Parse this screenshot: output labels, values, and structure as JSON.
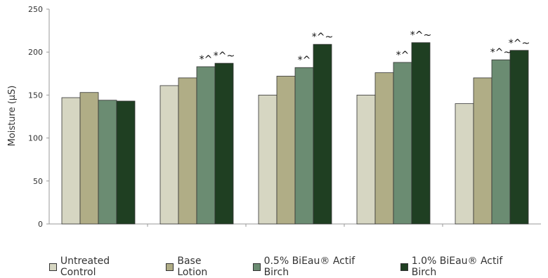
{
  "chart_data": {
    "type": "bar",
    "title": "",
    "xlabel": "",
    "ylabel": "Moisture (µS)",
    "ylim": [
      0,
      250
    ],
    "yticks": [
      0,
      50,
      100,
      150,
      200,
      250
    ],
    "categories": [
      "",
      "",
      "",
      "",
      ""
    ],
    "series": [
      {
        "name": "Untreated Control",
        "color": "#d6d6c2",
        "values": [
          147,
          161,
          150,
          150,
          140
        ]
      },
      {
        "name": "Base Lotion",
        "color": "#b0ad86",
        "values": [
          153,
          170,
          172,
          176,
          170
        ]
      },
      {
        "name": "0.5% BiEau® Actif Birch",
        "color": "#6b8c72",
        "values": [
          144,
          183,
          182,
          188,
          191
        ]
      },
      {
        "name": "1.0% BiEau® Actif Birch",
        "color": "#1f3f22",
        "values": [
          143,
          187,
          209,
          211,
          202
        ]
      }
    ],
    "annotations": [
      [
        "",
        "",
        "",
        ""
      ],
      [
        "",
        "",
        "*^",
        "*^~"
      ],
      [
        "",
        "",
        "*^",
        "*^~"
      ],
      [
        "",
        "",
        "*^",
        "*^~"
      ],
      [
        "",
        "",
        "*^~",
        "*^~"
      ]
    ],
    "legend_position": "bottom",
    "grid": false
  }
}
